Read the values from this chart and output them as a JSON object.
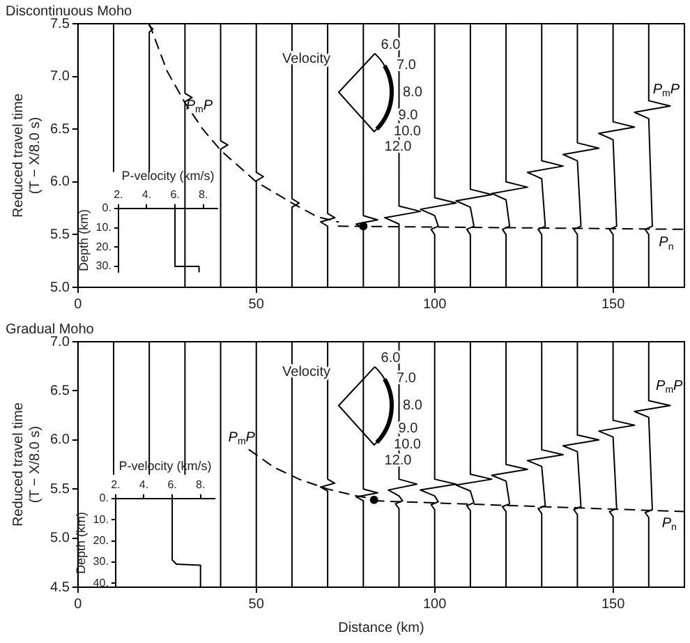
{
  "chart_data": [
    {
      "type": "line",
      "title": "Discontinuous Moho",
      "ylabel": "Reduced travel time\n(T − X/8.0 s)",
      "xlim": [
        0,
        170
      ],
      "xticks": [
        0,
        50,
        100,
        150
      ],
      "ylim": [
        5.0,
        7.5
      ],
      "yticks": [
        {
          "value": 5,
          "label": "5.0"
        },
        5.5,
        {
          "value": 6,
          "label": "6.0"
        },
        6.5,
        {
          "value": 7,
          "label": "7.0"
        },
        7.5
      ],
      "marker": "none",
      "annotations": [
        "Velocity",
        "6.0",
        "7.0",
        "8.0",
        "9.0",
        "10.0",
        "12.0",
        "P$_{m}$P",
        "P$_{m}$P",
        "P$_{n}$"
      ],
      "series": [
        {
          "color": "#000000",
          "x": [
            10,
            10
          ],
          "values": [
            7.5,
            6.1
          ]
        },
        {
          "color": "#000000",
          "x": [
            20,
            20,
            21,
            20,
            20
          ],
          "values": [
            7.5,
            7.48,
            7.45,
            7.42,
            6.1
          ]
        },
        {
          "color": "#000000",
          "x": [
            30,
            30,
            32,
            30,
            30
          ],
          "values": [
            7.5,
            6.84,
            6.8,
            6.76,
            5.0
          ]
        },
        {
          "color": "#000000",
          "x": [
            40,
            40,
            42,
            40,
            40
          ],
          "values": [
            7.5,
            6.39,
            6.35,
            6.31,
            5.0
          ]
        },
        {
          "color": "#000000",
          "x": [
            50,
            50,
            52,
            50,
            50
          ],
          "values": [
            7.5,
            6.09,
            6.05,
            6.01,
            5.0
          ]
        },
        {
          "color": "#000000",
          "x": [
            60,
            60,
            62,
            60,
            60
          ],
          "values": [
            7.5,
            5.84,
            5.8,
            5.76,
            5.0
          ]
        },
        {
          "color": "#000000",
          "x": [
            70,
            70,
            72,
            68,
            70,
            70
          ],
          "values": [
            7.5,
            5.7,
            5.66,
            5.62,
            5.58,
            5.0
          ]
        },
        {
          "color": "#000000",
          "x": [
            80,
            80,
            84,
            78,
            80,
            80
          ],
          "values": [
            7.5,
            5.68,
            5.64,
            5.6,
            5.56,
            5.0
          ]
        },
        {
          "color": "#000000",
          "x": [
            90,
            90,
            96,
            86,
            90,
            90
          ],
          "values": [
            7.5,
            5.77,
            5.72,
            5.66,
            5.6,
            5.0
          ]
        },
        {
          "color": "#000000",
          "x": [
            100,
            100,
            106,
            96,
            100,
            101,
            99,
            100,
            100
          ],
          "values": [
            7.5,
            5.85,
            5.8,
            5.74,
            5.68,
            5.58,
            5.55,
            5.5,
            5.0
          ]
        },
        {
          "color": "#000000",
          "x": [
            110,
            110,
            116,
            106,
            110,
            111,
            109,
            110,
            110
          ],
          "values": [
            7.5,
            5.93,
            5.88,
            5.82,
            5.76,
            5.58,
            5.55,
            5.5,
            5.0
          ]
        },
        {
          "color": "#000000",
          "x": [
            120,
            120,
            126,
            116,
            120,
            121,
            119,
            120,
            120
          ],
          "values": [
            7.5,
            6.0,
            5.95,
            5.89,
            5.83,
            5.58,
            5.55,
            5.5,
            5.0
          ]
        },
        {
          "color": "#000000",
          "x": [
            130,
            130,
            136,
            126,
            130,
            131,
            129,
            130,
            130
          ],
          "values": [
            7.5,
            6.2,
            6.15,
            6.09,
            6.03,
            5.58,
            5.55,
            5.5,
            5.0
          ]
        },
        {
          "color": "#000000",
          "x": [
            140,
            140,
            146,
            136,
            140,
            141,
            139,
            140,
            140
          ],
          "values": [
            7.5,
            6.37,
            6.32,
            6.26,
            6.2,
            5.58,
            5.55,
            5.5,
            5.0
          ]
        },
        {
          "color": "#000000",
          "x": [
            150,
            150,
            156,
            146,
            150,
            151,
            149,
            150,
            150
          ],
          "values": [
            7.5,
            6.57,
            6.52,
            6.46,
            6.4,
            5.58,
            5.55,
            5.5,
            5.0
          ]
        },
        {
          "color": "#000000",
          "x": [
            160,
            160,
            166,
            156,
            160,
            161,
            159,
            160,
            160
          ],
          "values": [
            7.5,
            6.77,
            6.72,
            6.66,
            6.6,
            5.58,
            5.55,
            5.5,
            5.0
          ]
        },
        {
          "color": "#000000",
          "line_style": "dashed",
          "x": [
            20,
            25,
            30,
            35,
            40,
            50,
            60,
            67,
            73
          ],
          "values": [
            7.5,
            7.05,
            6.75,
            6.5,
            6.3,
            6.0,
            5.8,
            5.67,
            5.62
          ]
        },
        {
          "color": "#000000",
          "line_style": "dashed",
          "x": [
            73,
            170
          ],
          "values": [
            5.58,
            5.55
          ]
        },
        {
          "type": "scatter",
          "marker": "circle",
          "color": "#000000",
          "x": [
            80
          ],
          "values": [
            5.58
          ]
        }
      ]
    },
    {
      "type": "line",
      "xlabel": "P-velocity (km/s)",
      "ylabel": "Depth (km)",
      "xlim": [
        2,
        9
      ],
      "xticks": [
        {
          "value": 2,
          "label": "2."
        },
        {
          "value": 4,
          "label": "4."
        },
        {
          "value": 6,
          "label": "6."
        },
        {
          "value": 8,
          "label": "8."
        }
      ],
      "ylim": [
        33,
        0
      ],
      "yticks": [
        {
          "value": 0,
          "label": "0."
        },
        {
          "value": 10,
          "label": "10."
        },
        {
          "value": 20,
          "label": "20."
        },
        {
          "value": 30,
          "label": "30."
        }
      ],
      "marker": "none",
      "series": [
        {
          "color": "#000000",
          "x": [
            6,
            6,
            7.7,
            7.7
          ],
          "values": [
            0,
            30,
            30,
            33
          ]
        }
      ]
    },
    {
      "type": "line",
      "title": "Gradual Moho",
      "xlabel": "Distance (km)",
      "ylabel": "Reduced travel time\n(T − X/8.0 s)",
      "xlim": [
        0,
        170
      ],
      "xticks": [
        0,
        50,
        100,
        150
      ],
      "ylim": [
        4.5,
        7.0
      ],
      "yticks": [
        4.5,
        {
          "value": 5,
          "label": "5.0"
        },
        5.5,
        {
          "value": 6,
          "label": "6.0"
        },
        6.5,
        {
          "value": 7,
          "label": "7.0"
        }
      ],
      "marker": "none",
      "annotations": [
        "Velocity",
        "6.0",
        "7.0",
        "8.0",
        "9.0",
        "10.0",
        "12.0",
        "P$_{m}$P",
        "P$_{m}$P",
        "P$_{n}$"
      ],
      "series": [
        {
          "color": "#000000",
          "x": [
            10,
            10
          ],
          "values": [
            7.0,
            5.65
          ]
        },
        {
          "color": "#000000",
          "x": [
            20,
            20
          ],
          "values": [
            7.0,
            5.65
          ]
        },
        {
          "color": "#000000",
          "x": [
            30,
            30
          ],
          "values": [
            7.0,
            5.65
          ]
        },
        {
          "color": "#000000",
          "x": [
            40,
            40
          ],
          "values": [
            7.0,
            4.5
          ]
        },
        {
          "color": "#000000",
          "x": [
            50,
            50
          ],
          "values": [
            7.0,
            4.5
          ]
        },
        {
          "color": "#000000",
          "x": [
            60,
            60
          ],
          "values": [
            7.0,
            4.5
          ]
        },
        {
          "color": "#000000",
          "x": [
            70,
            70,
            72,
            68,
            70,
            70
          ],
          "values": [
            7.0,
            5.6,
            5.56,
            5.52,
            5.48,
            4.5
          ]
        },
        {
          "color": "#000000",
          "x": [
            80,
            80,
            84,
            78,
            80,
            80
          ],
          "values": [
            7.0,
            5.5,
            5.46,
            5.42,
            5.38,
            4.5
          ]
        },
        {
          "color": "#000000",
          "x": [
            90,
            90,
            95,
            87,
            90,
            91,
            89,
            90,
            90
          ],
          "values": [
            7.0,
            5.6,
            5.55,
            5.49,
            5.43,
            5.38,
            5.35,
            5.3,
            4.5
          ]
        },
        {
          "color": "#000000",
          "x": [
            100,
            100,
            106,
            96,
            100,
            101,
            99,
            100,
            100
          ],
          "values": [
            7.0,
            5.6,
            5.55,
            5.49,
            5.43,
            5.37,
            5.34,
            5.29,
            4.5
          ]
        },
        {
          "color": "#000000",
          "x": [
            110,
            110,
            116,
            106,
            110,
            111,
            109,
            110,
            110
          ],
          "values": [
            7.0,
            5.65,
            5.6,
            5.54,
            5.48,
            5.36,
            5.33,
            5.28,
            4.5
          ]
        },
        {
          "color": "#000000",
          "x": [
            120,
            120,
            126,
            116,
            120,
            121,
            119,
            120,
            120
          ],
          "values": [
            7.0,
            5.75,
            5.7,
            5.64,
            5.58,
            5.35,
            5.32,
            5.27,
            4.5
          ]
        },
        {
          "color": "#000000",
          "x": [
            130,
            130,
            136,
            126,
            130,
            131,
            129,
            130,
            130
          ],
          "values": [
            7.0,
            5.9,
            5.85,
            5.79,
            5.73,
            5.33,
            5.3,
            5.25,
            4.5
          ]
        },
        {
          "color": "#000000",
          "x": [
            140,
            140,
            146,
            136,
            140,
            141,
            139,
            140,
            140
          ],
          "values": [
            7.0,
            6.05,
            6.0,
            5.94,
            5.88,
            5.32,
            5.29,
            5.24,
            4.5
          ]
        },
        {
          "color": "#000000",
          "x": [
            150,
            150,
            156,
            146,
            150,
            151,
            149,
            150,
            150
          ],
          "values": [
            7.0,
            6.2,
            6.15,
            6.09,
            6.03,
            5.3,
            5.27,
            5.22,
            4.5
          ]
        },
        {
          "color": "#000000",
          "x": [
            160,
            160,
            166,
            156,
            160,
            161,
            159,
            160,
            160
          ],
          "values": [
            7.0,
            6.4,
            6.35,
            6.29,
            6.23,
            5.29,
            5.26,
            5.21,
            4.5
          ]
        },
        {
          "color": "#000000",
          "line_style": "dashed",
          "x": [
            48,
            55,
            62,
            70,
            78,
            83
          ],
          "values": [
            5.9,
            5.72,
            5.6,
            5.5,
            5.43,
            5.4
          ]
        },
        {
          "color": "#000000",
          "line_style": "dashed",
          "x": [
            83,
            170
          ],
          "values": [
            5.38,
            5.27
          ]
        },
        {
          "type": "scatter",
          "marker": "circle",
          "color": "#000000",
          "x": [
            83
          ],
          "values": [
            5.39
          ]
        }
      ]
    },
    {
      "type": "line",
      "xlabel": "P-velocity (km/s)",
      "ylabel": "Depth (km)",
      "xlim": [
        2,
        9
      ],
      "xticks": [
        {
          "value": 2,
          "label": "2."
        },
        {
          "value": 4,
          "label": "4."
        },
        {
          "value": 6,
          "label": "6."
        },
        {
          "value": 8,
          "label": "8."
        }
      ],
      "ylim": [
        42,
        0
      ],
      "yticks": [
        {
          "value": 0,
          "label": "0."
        },
        {
          "value": 10,
          "label": "10."
        },
        {
          "value": 20,
          "label": "20."
        },
        {
          "value": 30,
          "label": "30."
        },
        {
          "value": 40,
          "label": "40."
        }
      ],
      "marker": "none",
      "series": [
        {
          "color": "#000000",
          "x": [
            6,
            6,
            6.3,
            8,
            8
          ],
          "values": [
            0,
            29,
            31,
            31.5,
            42
          ]
        }
      ]
    }
  ]
}
